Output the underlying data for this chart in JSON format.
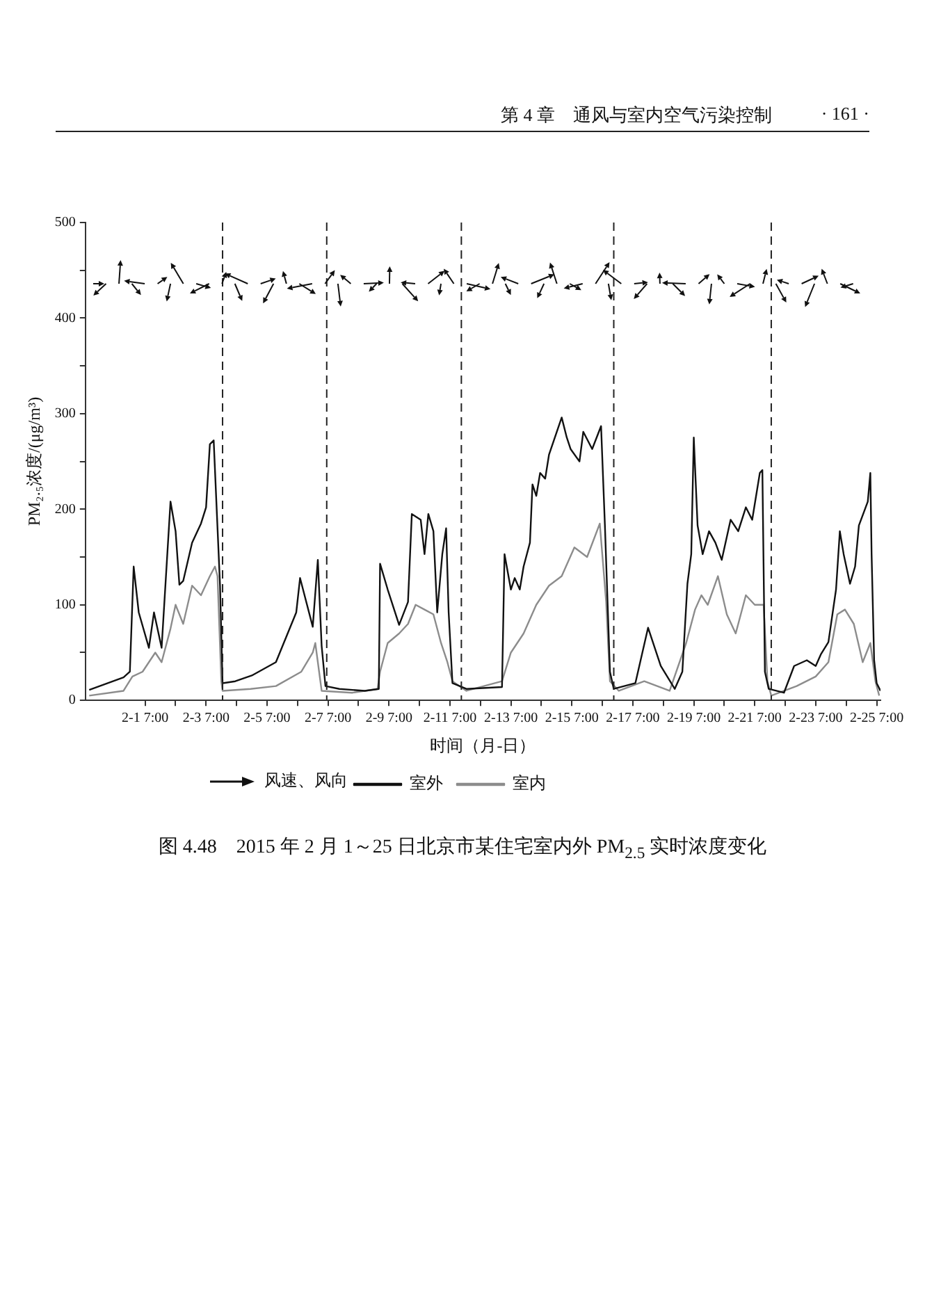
{
  "chart_data": {
    "type": "line",
    "title": "图 4.48　2015 年 2 月 1～25 日北京市某住宅室内外 PM$_{2.5}$ 实时浓度变化",
    "xlabel": "时间（月-日）",
    "ylabel": "PM₂.₅浓度/(μg/m³)",
    "annotations": [
      "第 4 章　通风与室内空气污染控制",
      "· 161 ·",
      "风速、风向"
    ],
    "xlim": [
      "2015-01-30T08:00",
      "2015-02-25T10:00"
    ],
    "ylim": [
      0,
      500
    ],
    "xticks": [
      {
        "value": "2015-02-01T07:00",
        "label": "2-1 7:00"
      },
      {
        "value": "2015-02-02T07:00",
        "label": null
      },
      {
        "value": "2015-02-03T07:00",
        "label": "2-3 7:00"
      },
      {
        "value": "2015-02-04T07:00",
        "label": null
      },
      {
        "value": "2015-02-05T07:00",
        "label": "2-5 7:00"
      },
      {
        "value": "2015-02-06T07:00",
        "label": null
      },
      {
        "value": "2015-02-07T07:00",
        "label": "2-7 7:00"
      },
      {
        "value": "2015-02-08T07:00",
        "label": null
      },
      {
        "value": "2015-02-09T07:00",
        "label": "2-9 7:00"
      },
      {
        "value": "2015-02-10T07:00",
        "label": null
      },
      {
        "value": "2015-02-11T07:00",
        "label": "2-11 7:00"
      },
      {
        "value": "2015-02-12T07:00",
        "label": null
      },
      {
        "value": "2015-02-13T07:00",
        "label": "2-13 7:00"
      },
      {
        "value": "2015-02-14T07:00",
        "label": null
      },
      {
        "value": "2015-02-15T07:00",
        "label": "2-15 7:00"
      },
      {
        "value": "2015-02-16T07:00",
        "label": null
      },
      {
        "value": "2015-02-17T07:00",
        "label": "2-17 7:00"
      },
      {
        "value": "2015-02-18T07:00",
        "label": null
      },
      {
        "value": "2015-02-19T07:00",
        "label": "2-19 7:00"
      },
      {
        "value": "2015-02-20T07:00",
        "label": null
      },
      {
        "value": "2015-02-21T07:00",
        "label": "2-21 7:00"
      },
      {
        "value": "2015-02-22T07:00",
        "label": null
      },
      {
        "value": "2015-02-23T07:00",
        "label": "2-23 7:00"
      },
      {
        "value": "2015-02-24T07:00",
        "label": null
      },
      {
        "value": "2015-02-25T07:00",
        "label": "2-25 7:00"
      }
    ],
    "yticks": [
      0,
      {
        "value": 50,
        "label": null
      },
      100,
      {
        "value": 150,
        "label": null
      },
      200,
      {
        "value": 250,
        "label": null
      },
      300,
      {
        "value": 350,
        "label": null
      },
      400,
      {
        "value": 450,
        "label": null
      },
      500
    ],
    "grid": false,
    "legend": "bottom",
    "marker": "none",
    "ref_lines": [
      {
        "axis": "x",
        "value": "2015-02-03T20:00",
        "line_style": "dashed"
      },
      {
        "axis": "x",
        "value": "2015-02-07T06:00",
        "line_style": "dashed"
      },
      {
        "axis": "x",
        "value": "2015-02-11T16:00",
        "line_style": "dashed"
      },
      {
        "axis": "x",
        "value": "2015-02-16T16:00",
        "line_style": "dashed"
      },
      {
        "axis": "x",
        "value": "2015-02-21T20:00",
        "line_style": "dashed"
      }
    ],
    "series": [
      {
        "name": "室外",
        "color": "#111111",
        "x": [
          "2015-01-30T11:00",
          "2015-01-31T14:00",
          "2015-01-31T19:00",
          "2015-01-31T22:00",
          "2015-02-01T02:00",
          "2015-02-01T10:00",
          "2015-02-01T14:00",
          "2015-02-01T20:00",
          "2015-02-02T03:00",
          "2015-02-02T07:00",
          "2015-02-02T10:00",
          "2015-02-02T13:00",
          "2015-02-02T20:00",
          "2015-02-03T03:00",
          "2015-02-03T07:00",
          "2015-02-03T10:00",
          "2015-02-03T13:00",
          "2015-02-03T18:00",
          "2015-02-03T20:00",
          "2015-02-04T06:00",
          "2015-02-04T19:00",
          "2015-02-05T14:00",
          "2015-02-06T06:00",
          "2015-02-06T09:00",
          "2015-02-06T19:00",
          "2015-02-06T23:00",
          "2015-02-07T02:00",
          "2015-02-07T05:00",
          "2015-02-07T16:00",
          "2015-02-08T12:00",
          "2015-02-08T23:00",
          "2015-02-09T00:00",
          "2015-02-09T06:00",
          "2015-02-09T15:00",
          "2015-02-09T22:00",
          "2015-02-10T01:00",
          "2015-02-10T08:00",
          "2015-02-10T11:00",
          "2015-02-10T14:00",
          "2015-02-10T18:00",
          "2015-02-10T21:00",
          "2015-02-11T01:00",
          "2015-02-11T04:00",
          "2015-02-11T06:00",
          "2015-02-11T09:00",
          "2015-02-11T20:00",
          "2015-02-13T00:00",
          "2015-02-13T02:00",
          "2015-02-13T07:00",
          "2015-02-13T10:00",
          "2015-02-13T14:00",
          "2015-02-13T17:00",
          "2015-02-13T22:00",
          "2015-02-14T00:00",
          "2015-02-14T03:00",
          "2015-02-14T06:00",
          "2015-02-14T10:00",
          "2015-02-14T13:00",
          "2015-02-14T23:00",
          "2015-02-15T03:00",
          "2015-02-15T06:00",
          "2015-02-15T13:00",
          "2015-02-15T16:00",
          "2015-02-15T23:00",
          "2015-02-16T06:00",
          "2015-02-16T09:00",
          "2015-02-16T13:00",
          "2015-02-16T16:00",
          "2015-02-17T09:00",
          "2015-02-17T19:00",
          "2015-02-18T05:00",
          "2015-02-18T16:00",
          "2015-02-18T22:00",
          "2015-02-19T02:00",
          "2015-02-19T05:00",
          "2015-02-19T07:00",
          "2015-02-19T08:00",
          "2015-02-19T10:00",
          "2015-02-19T14:00",
          "2015-02-19T19:00",
          "2015-02-20T00:00",
          "2015-02-20T05:00",
          "2015-02-20T12:00",
          "2015-02-20T18:00",
          "2015-02-21T00:00",
          "2015-02-21T05:00",
          "2015-02-21T11:00",
          "2015-02-21T13:00",
          "2015-02-21T15:00",
          "2015-02-21T18:00",
          "2015-02-22T06:00",
          "2015-02-22T14:00",
          "2015-02-23T00:00",
          "2015-02-23T07:00",
          "2015-02-23T11:00",
          "2015-02-23T17:00",
          "2015-02-23T23:00",
          "2015-02-24T02:00",
          "2015-02-24T05:00",
          "2015-02-24T10:00",
          "2015-02-24T14:00",
          "2015-02-24T17:00",
          "2015-02-25T00:00",
          "2015-02-25T02:00",
          "2015-02-25T03:00",
          "2015-02-25T05:00",
          "2015-02-25T07:00",
          "2015-02-25T10:00"
        ],
        "values": [
          11,
          24,
          30,
          140,
          92,
          55,
          92,
          55,
          208,
          177,
          121,
          125,
          165,
          185,
          202,
          268,
          272,
          120,
          18,
          20,
          26,
          40,
          92,
          128,
          77,
          147,
          57,
          15,
          12,
          10,
          12,
          143,
          116,
          79,
          103,
          195,
          189,
          153,
          195,
          177,
          92,
          153,
          180,
          92,
          18,
          12,
          14,
          153,
          116,
          128,
          116,
          140,
          165,
          226,
          214,
          238,
          232,
          257,
          296,
          275,
          263,
          250,
          281,
          263,
          287,
          184,
          30,
          12,
          18,
          76,
          36,
          12,
          30,
          122,
          153,
          275,
          244,
          183,
          153,
          177,
          165,
          147,
          189,
          177,
          202,
          189,
          238,
          241,
          30,
          12,
          8,
          36,
          42,
          36,
          48,
          61,
          116,
          177,
          153,
          122,
          140,
          183,
          208,
          238,
          153,
          42,
          18,
          10
        ]
      },
      {
        "name": "室内",
        "color": "#8c8c8c",
        "x": [
          "2015-01-30T11:00",
          "2015-01-31T14:00",
          "2015-01-31T21:00",
          "2015-02-01T05:00",
          "2015-02-01T15:00",
          "2015-02-01T20:00",
          "2015-02-02T03:00",
          "2015-02-02T07:00",
          "2015-02-02T13:00",
          "2015-02-02T20:00",
          "2015-02-03T03:00",
          "2015-02-03T10:00",
          "2015-02-03T14:00",
          "2015-02-03T16:00",
          "2015-02-03T19:00",
          "2015-02-03T20:00",
          "2015-02-04T18:00",
          "2015-02-05T14:00",
          "2015-02-06T10:00",
          "2015-02-06T19:00",
          "2015-02-06T21:00",
          "2015-02-07T02:00",
          "2015-02-08T02:00",
          "2015-02-08T22:00",
          "2015-02-09T00:00",
          "2015-02-09T06:00",
          "2015-02-09T15:00",
          "2015-02-09T22:00",
          "2015-02-10T04:00",
          "2015-02-10T11:00",
          "2015-02-10T18:00",
          "2015-02-11T00:00",
          "2015-02-11T05:00",
          "2015-02-11T09:00",
          "2015-02-11T20:00",
          "2015-02-13T00:00",
          "2015-02-13T07:00",
          "2015-02-13T17:00",
          "2015-02-14T03:00",
          "2015-02-14T13:00",
          "2015-02-14T23:00",
          "2015-02-15T09:00",
          "2015-02-15T19:00",
          "2015-02-16T05:00",
          "2015-02-16T10:00",
          "2015-02-16T13:00",
          "2015-02-16T20:00",
          "2015-02-17T16:00",
          "2015-02-18T12:00",
          "2015-02-19T01:00",
          "2015-02-19T08:00",
          "2015-02-19T13:00",
          "2015-02-19T18:00",
          "2015-02-20T02:00",
          "2015-02-20T09:00",
          "2015-02-20T16:00",
          "2015-02-21T00:00",
          "2015-02-21T07:00",
          "2015-02-21T14:00",
          "2015-02-21T17:00",
          "2015-02-21T20:00",
          "2015-02-22T16:00",
          "2015-02-23T07:00",
          "2015-02-23T17:00",
          "2015-02-24T00:00",
          "2015-02-24T06:00",
          "2015-02-24T13:00",
          "2015-02-24T20:00",
          "2015-02-25T02:00",
          "2015-02-25T06:00",
          "2015-02-25T09:00"
        ],
        "values": [
          5,
          10,
          25,
          30,
          50,
          40,
          75,
          100,
          80,
          120,
          110,
          130,
          140,
          130,
          20,
          10,
          12,
          15,
          30,
          50,
          60,
          10,
          8,
          12,
          30,
          60,
          70,
          80,
          100,
          95,
          90,
          60,
          40,
          20,
          10,
          20,
          50,
          70,
          100,
          120,
          130,
          160,
          150,
          185,
          103,
          20,
          10,
          20,
          10,
          60,
          95,
          110,
          100,
          130,
          90,
          70,
          110,
          100,
          100,
          20,
          5,
          15,
          25,
          40,
          90,
          95,
          80,
          40,
          60,
          20,
          5
        ]
      }
    ]
  }
}
